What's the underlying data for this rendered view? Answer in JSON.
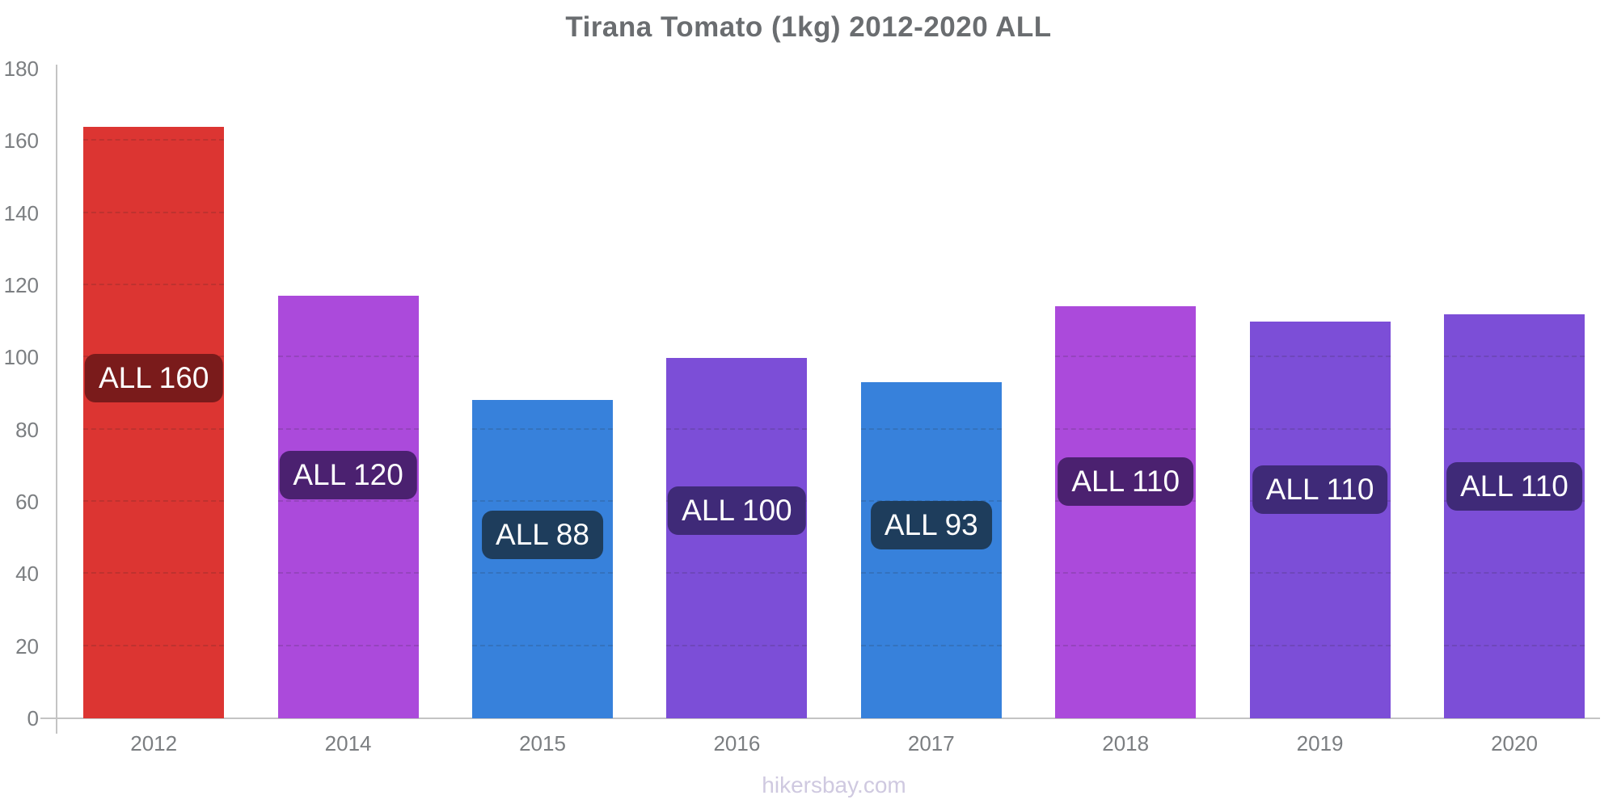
{
  "page": {
    "title": "Tirana Tomato (1kg) 2012-2020 ALL",
    "watermark": "hikersbay.com"
  },
  "chart_data": {
    "type": "bar",
    "title": "Tirana Tomato (1kg) 2012-2020 ALL",
    "subtitle": "",
    "xlabel": "",
    "ylabel": "",
    "currency_code": "ALL",
    "city": "Tirana",
    "item": "Tomato (1kg)",
    "year_range": "2012-2020",
    "categories": [
      "2012",
      "2014",
      "2015",
      "2016",
      "2017",
      "2018",
      "2019",
      "2020"
    ],
    "values": [
      163.8,
      117.2,
      88.3,
      99.9,
      93.1,
      114.2,
      110.0,
      111.9
    ],
    "bar_labels": [
      "ALL 160",
      "ALL 120",
      "ALL 88",
      "ALL 100",
      "ALL 93",
      "ALL 110",
      "ALL 110",
      "ALL 110"
    ],
    "bar_colors": [
      "#dc3532",
      "#ab4adb",
      "#3781db",
      "#7c4ed7",
      "#3781db",
      "#ab4adb",
      "#7c4ed7",
      "#7c4ed7"
    ],
    "badge_colors": [
      "#7a1b1b",
      "#4b2170",
      "#1e3d5c",
      "#3f2a78",
      "#1e3d5c",
      "#4b2170",
      "#3f2a78",
      "#3f2a78"
    ],
    "badge_text_color": "#ffffff",
    "ylim": [
      0,
      180
    ],
    "yticks": [
      0,
      20,
      40,
      60,
      80,
      100,
      120,
      140,
      160,
      180
    ],
    "grid": "horizontal dotted lines every 20, visible over bars",
    "legend_position": "none",
    "axis_color": "#c4c4c4",
    "label_color": "#7b7e81",
    "title_color": "#6a6d70",
    "watermark_color": "#cfc9e0",
    "background": "#ffffff"
  }
}
